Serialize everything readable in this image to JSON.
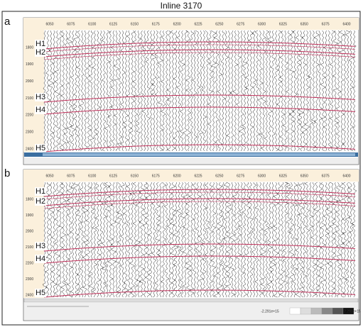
{
  "title": "Inline 3170",
  "panels": [
    {
      "label": "a",
      "trace_ticks": [
        6050,
        6075,
        6100,
        6125,
        6150,
        6175,
        6200,
        6225,
        6250,
        6275,
        6300,
        6325,
        6350,
        6375,
        6400
      ],
      "time_ticks": [
        1800,
        1900,
        2000,
        2100,
        2200,
        2300,
        2400
      ],
      "horizons": [
        "H1",
        "H2",
        "H3",
        "H4",
        "H5"
      ]
    },
    {
      "label": "b",
      "trace_ticks": [
        6050,
        6075,
        6100,
        6125,
        6150,
        6175,
        6200,
        6225,
        6250,
        6275,
        6300,
        6325,
        6350,
        6375,
        6400
      ],
      "time_ticks": [
        1800,
        1900,
        2000,
        2100,
        2200,
        2300,
        2400
      ],
      "horizons": [
        "H1",
        "H2",
        "H3",
        "H4",
        "H5"
      ],
      "colorbar": {
        "min_label": "-2.291e+15",
        "max_label": "2.291e+15"
      }
    }
  ]
}
